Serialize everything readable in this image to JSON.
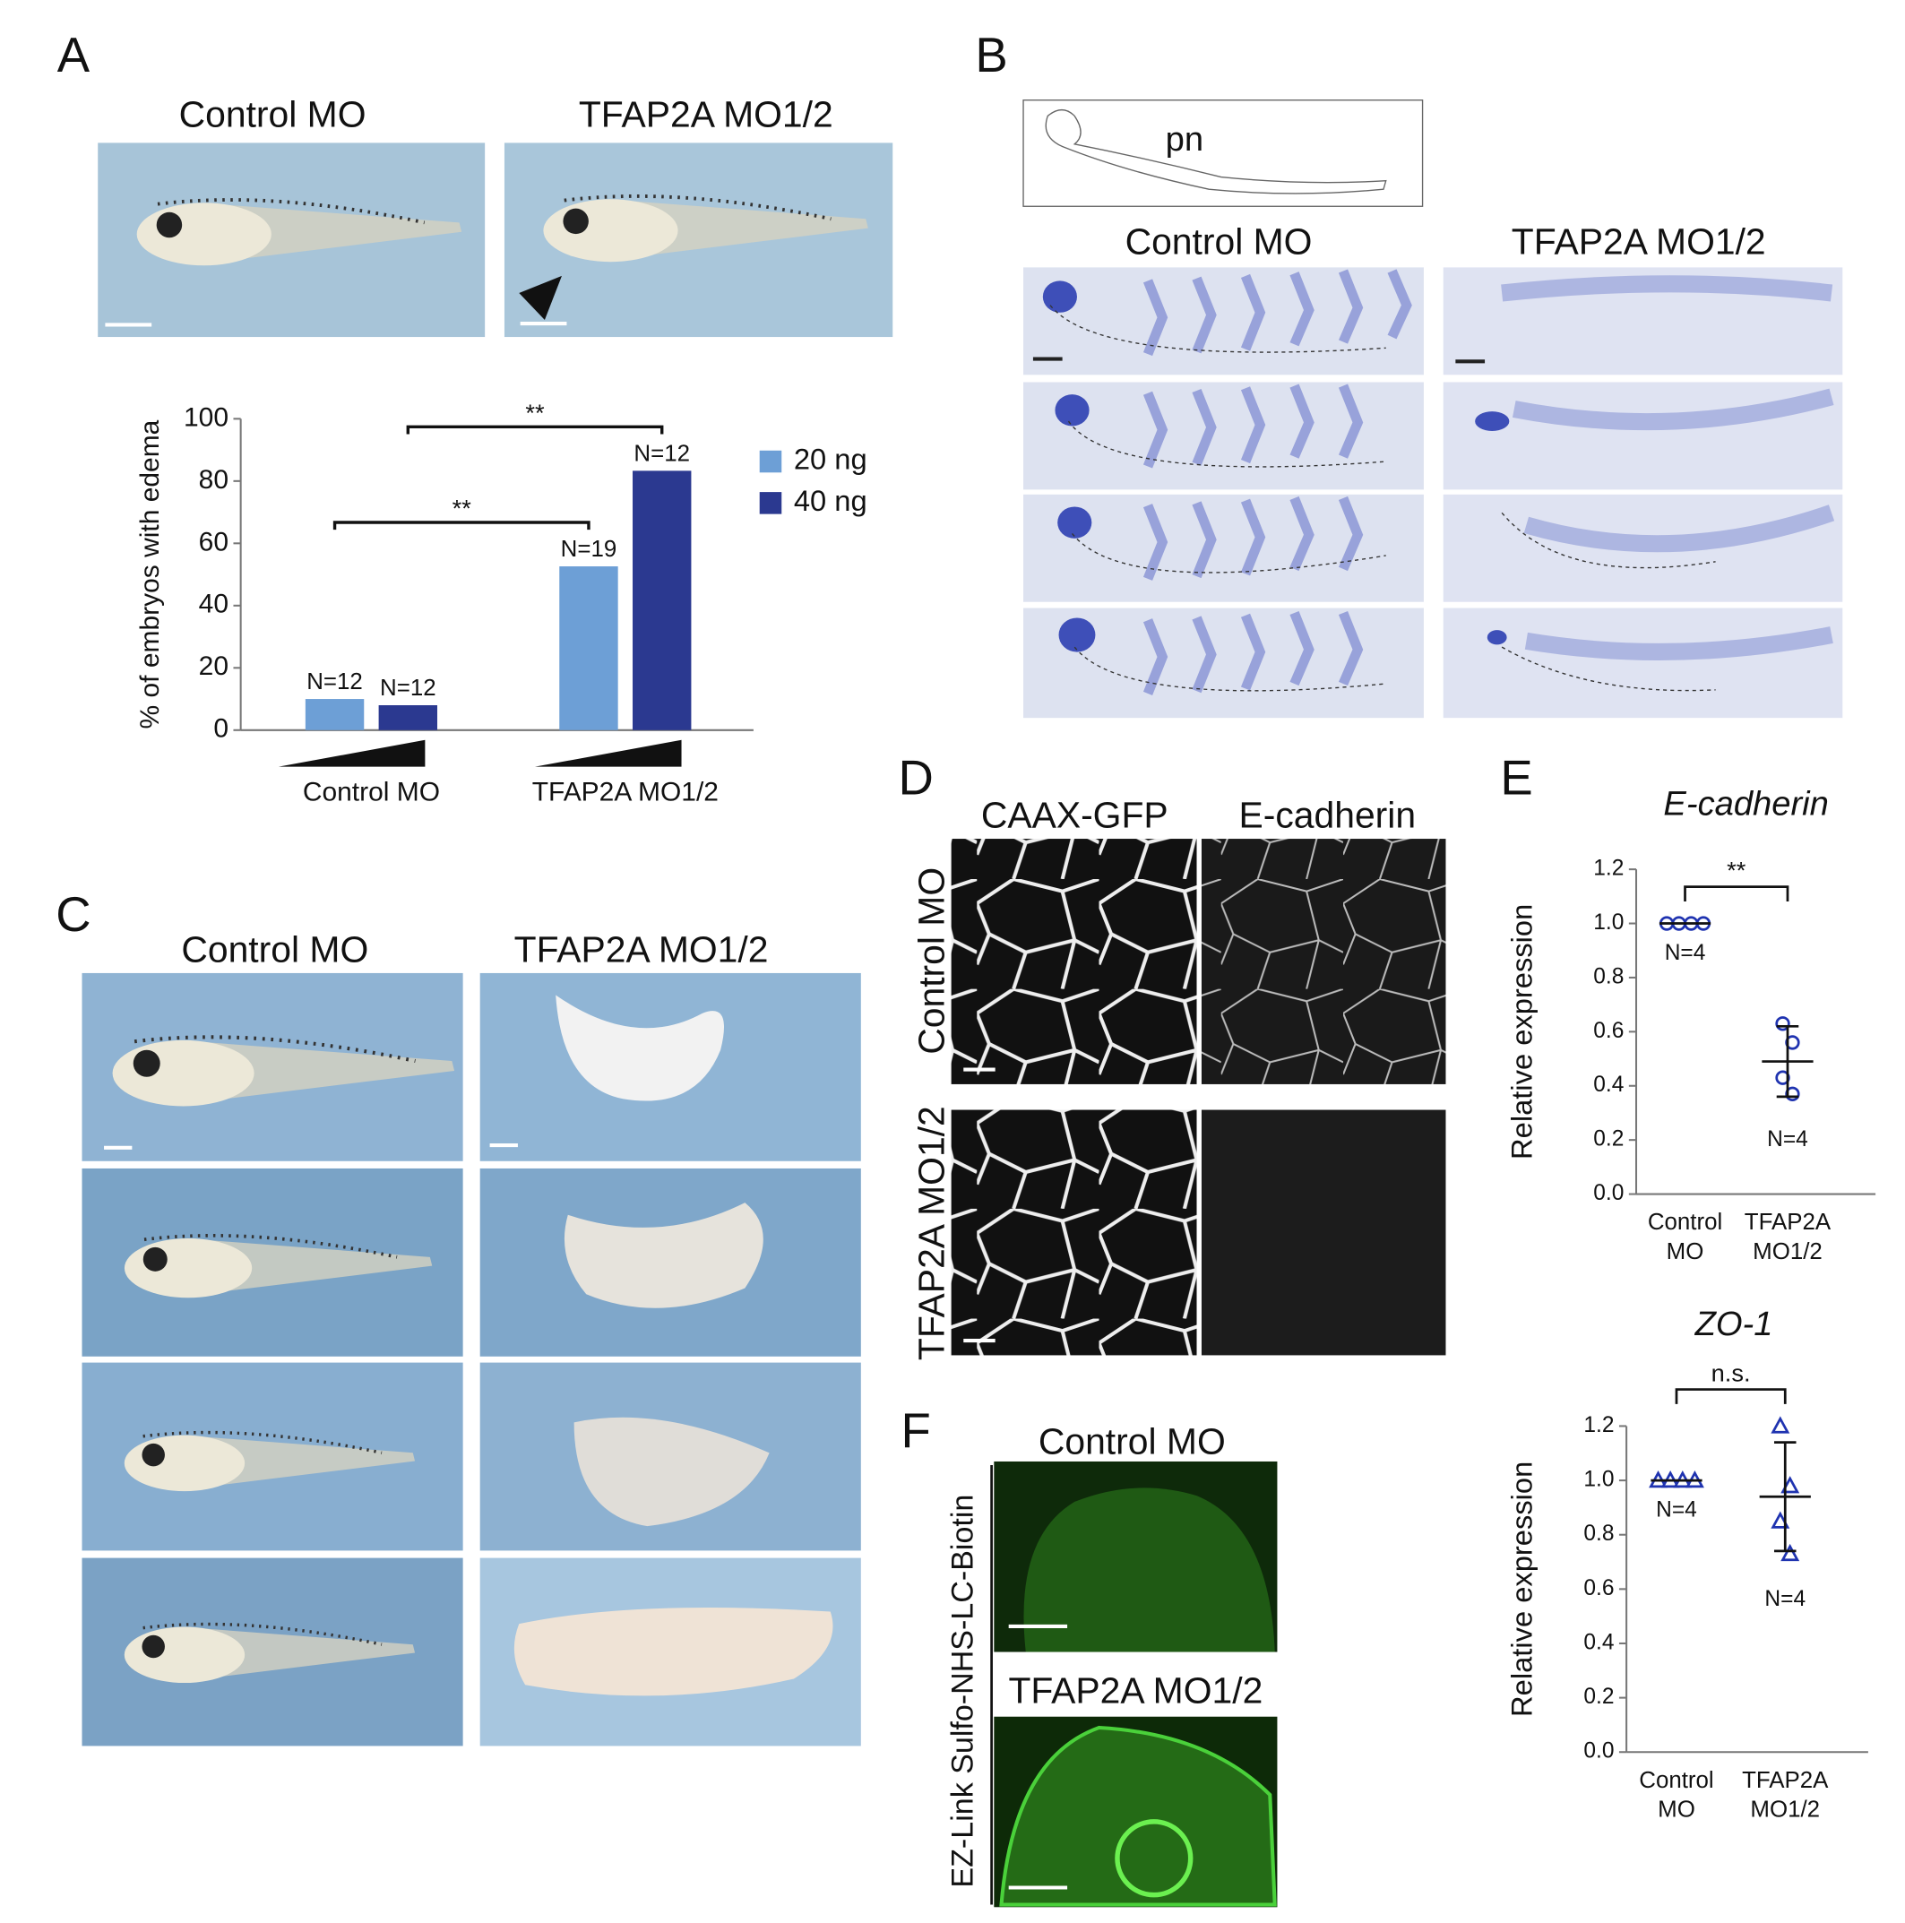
{
  "panels": {
    "A": {
      "label": "A",
      "columns": [
        "Control MO",
        "TFAP2A MO1/2"
      ]
    },
    "B": {
      "label": "B",
      "schematic_label": "pn",
      "columns": [
        "Control MO",
        "TFAP2A MO1/2"
      ]
    },
    "C": {
      "label": "C",
      "columns": [
        "Control MO",
        "TFAP2A MO1/2"
      ]
    },
    "D": {
      "label": "D",
      "columns": [
        "CAAX-GFP",
        "E-cadherin"
      ],
      "rows": [
        "Control MO",
        "TFAP2A MO1/2"
      ]
    },
    "E": {
      "label": "E"
    },
    "F": {
      "label": "F",
      "side_label": "EZ-Link Sulfo-NHS-LC-Biotin",
      "rows": [
        "Control MO",
        "TFAP2A MO1/2"
      ]
    }
  },
  "chart_data": [
    {
      "type": "bar",
      "ylabel": "% of embryos with edema",
      "categories": [
        "Control MO",
        "TFAP2A MO1/2"
      ],
      "series": [
        {
          "name": "20 ng",
          "color": "#6d9fd6",
          "values": [
            10,
            52.6
          ],
          "n_labels": [
            "N=12",
            "N=19"
          ],
          "significance": "**"
        },
        {
          "name": "40 ng",
          "color": "#2b3990",
          "values": [
            8,
            83.3
          ],
          "n_labels": [
            "N=12",
            "N=12"
          ],
          "significance": "**"
        }
      ],
      "ylim": [
        0,
        100
      ],
      "yticks": [
        0,
        20,
        40,
        60,
        80,
        100
      ],
      "legend": "right"
    },
    {
      "type": "strip",
      "title": "E-cadherin",
      "ylabel": "Relative expression",
      "categories": [
        [
          "Control",
          "MO"
        ],
        [
          "TFAP2A",
          "MO1/2"
        ]
      ],
      "groups": [
        {
          "values": [
            1,
            1,
            1,
            1
          ],
          "mean": 1,
          "sd": 0,
          "n_label": "N=4"
        },
        {
          "values": [
            0.63,
            0.56,
            0.43,
            0.37
          ],
          "mean": 0.49,
          "sd": 0.13,
          "n_label": "N=4"
        }
      ],
      "marker": "circle",
      "color": "#1f33b0",
      "significance": "**",
      "ylim": [
        0,
        1.2
      ],
      "yticks": [
        {
          "value": 0,
          "label": "0.0"
        },
        0.2,
        0.4,
        0.6,
        0.8,
        {
          "value": 1,
          "label": "1.0"
        },
        1.2
      ]
    },
    {
      "type": "strip",
      "title": "ZO-1",
      "ylabel": "Relative expression",
      "categories": [
        [
          "Control",
          "MO"
        ],
        [
          "TFAP2A",
          "MO1/2"
        ]
      ],
      "groups": [
        {
          "values": [
            1,
            1,
            1,
            1
          ],
          "mean": 1,
          "sd": 0,
          "n_label": "N=4"
        },
        {
          "values": [
            1.2,
            0.98,
            0.85,
            0.73
          ],
          "mean": 0.94,
          "sd": 0.2,
          "n_label": "N=4"
        }
      ],
      "marker": "triangle",
      "color": "#1f33b0",
      "significance": "n.s.",
      "ylim": [
        0,
        1.2
      ],
      "yticks": [
        {
          "value": 0,
          "label": "0.0"
        },
        0.2,
        0.4,
        0.6,
        0.8,
        {
          "value": 1,
          "label": "1.0"
        },
        1.2
      ]
    }
  ]
}
